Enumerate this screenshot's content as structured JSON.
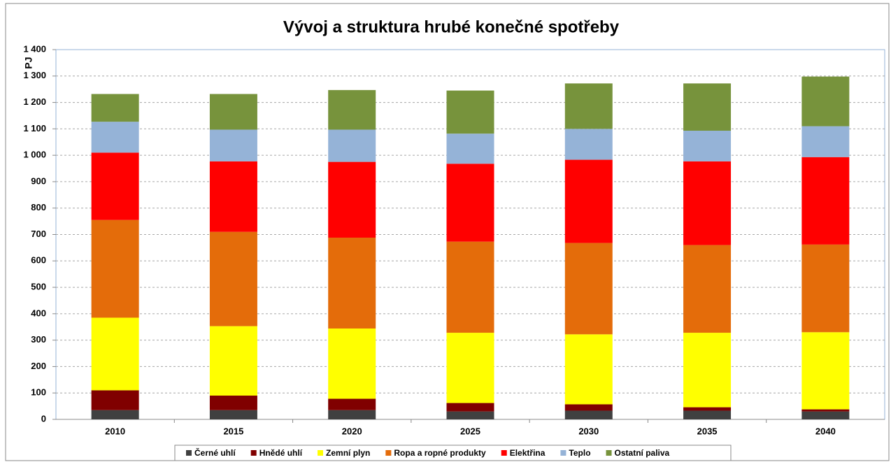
{
  "chart_data": {
    "type": "stacked_bar",
    "title": "Vývoj  a struktura hrubé konečné spotřeby",
    "y_label": "PJ",
    "categories": [
      "2010",
      "2015",
      "2020",
      "2025",
      "2030",
      "2035",
      "2040"
    ],
    "series": [
      {
        "name": "Černé uhlí",
        "color": "#404040",
        "values": [
          35,
          35,
          35,
          30,
          33,
          33,
          30
        ]
      },
      {
        "name": "Hnědé uhlí",
        "color": "#800000",
        "values": [
          75,
          55,
          43,
          32,
          24,
          13,
          8
        ]
      },
      {
        "name": "Zemní plyn",
        "color": "#ffff00",
        "values": [
          275,
          263,
          266,
          266,
          265,
          282,
          292
        ]
      },
      {
        "name": "Ropa a ropné produkty",
        "color": "#e46c0a",
        "values": [
          370,
          357,
          344,
          345,
          346,
          332,
          332
        ]
      },
      {
        "name": "Elektřina",
        "color": "#ff0000",
        "values": [
          255,
          267,
          287,
          295,
          315,
          317,
          331
        ]
      },
      {
        "name": "Teplo",
        "color": "#95b3d7",
        "values": [
          117,
          120,
          122,
          114,
          117,
          116,
          117
        ]
      },
      {
        "name": "Ostatní paliva",
        "color": "#77933c",
        "values": [
          105,
          135,
          150,
          163,
          172,
          179,
          188
        ]
      }
    ],
    "ylim": [
      0,
      1400
    ],
    "yticks": [
      0,
      100,
      200,
      300,
      400,
      500,
      600,
      700,
      800,
      900,
      {
        "value": 1000,
        "label": "1 000"
      },
      {
        "value": 1100,
        "label": "1 100"
      },
      {
        "value": 1200,
        "label": "1 200"
      },
      {
        "value": 1300,
        "label": "1 300"
      },
      {
        "value": 1400,
        "label": "1 400"
      }
    ],
    "grid": true
  }
}
